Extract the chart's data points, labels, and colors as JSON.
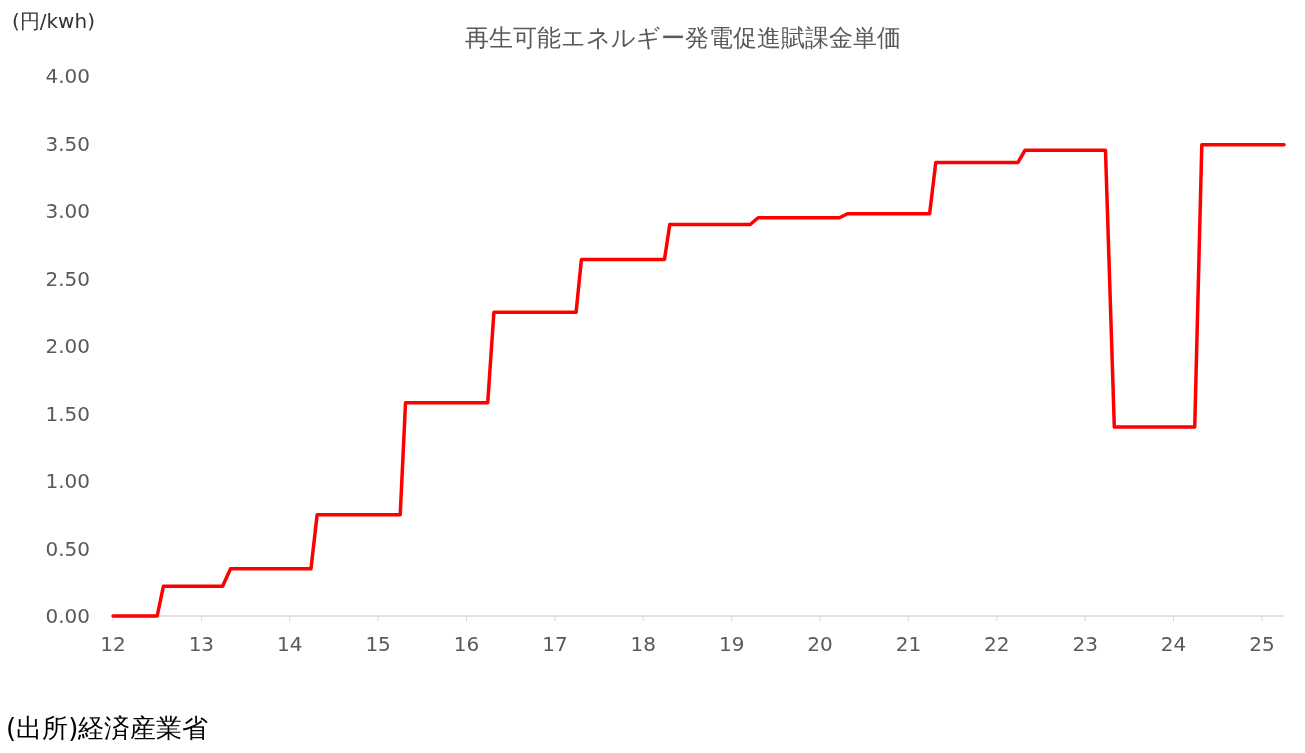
{
  "chart_data": {
    "type": "line",
    "title": "再生可能エネルギー発電促進賦課金単価",
    "ylabel": "(円/kwh)",
    "annotations": [
      "(出所)経済産業省"
    ],
    "x": [
      12,
      12.5,
      12.57,
      13.24,
      13.33,
      14.24,
      14.31,
      15.25,
      15.31,
      16.24,
      16.31,
      17.24,
      17.3,
      18.24,
      18.3,
      19.21,
      19.3,
      20.22,
      20.31,
      21.24,
      21.31,
      22.24,
      22.32,
      23.23,
      23.33,
      24.24,
      24.32,
      25.25
    ],
    "series": [
      {
        "color": "#ff0000",
        "values": [
          0,
          0,
          0.22,
          0.22,
          0.35,
          0.35,
          0.75,
          0.75,
          1.58,
          1.58,
          2.25,
          2.25,
          2.64,
          2.64,
          2.9,
          2.9,
          2.95,
          2.95,
          2.98,
          2.98,
          3.36,
          3.36,
          3.45,
          3.45,
          1.4,
          1.4,
          3.49,
          3.49
        ]
      }
    ],
    "xlim": [
      12,
      25.25
    ],
    "ylim": [
      0,
      4
    ],
    "xticks": [
      12,
      13,
      14,
      15,
      16,
      17,
      18,
      19,
      20,
      21,
      22,
      23,
      24,
      25
    ],
    "yticks": [
      {
        "value": 0,
        "label": "0.00"
      },
      {
        "value": 0.5,
        "label": "0.50"
      },
      {
        "value": 1,
        "label": "1.00"
      },
      {
        "value": 1.5,
        "label": "1.50"
      },
      {
        "value": 2,
        "label": "2.00"
      },
      {
        "value": 2.5,
        "label": "2.50"
      },
      {
        "value": 3,
        "label": "3.00"
      },
      {
        "value": 3.5,
        "label": "3.50"
      },
      {
        "value": 4,
        "label": "4.00"
      }
    ],
    "grid": false
  }
}
